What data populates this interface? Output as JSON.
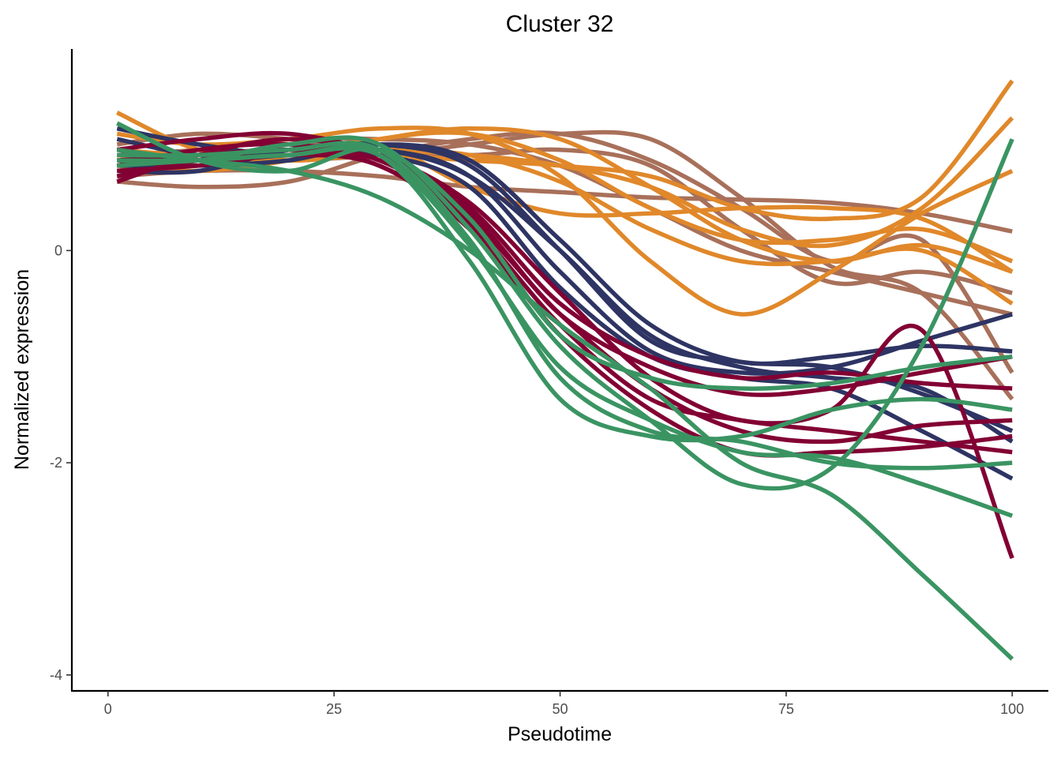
{
  "chart_data": {
    "type": "line",
    "title": "Cluster 32",
    "xlabel": "Pseudotime",
    "ylabel": "Normalized expression",
    "xlim": [
      -4,
      104
    ],
    "ylim": [
      -4.15,
      1.9
    ],
    "xticks": [
      0,
      25,
      50,
      75,
      100
    ],
    "xtick_labels": [
      "0",
      "25",
      "50",
      "75",
      "100"
    ],
    "yticks": [
      0,
      -2,
      -4
    ],
    "ytick_labels": [
      "0",
      "-2",
      "-4"
    ],
    "grid": false,
    "legend": "none",
    "colors": {
      "orange": "#E0882A",
      "brown": "#A8705A",
      "navy": "#2E3463",
      "crimson": "#820033",
      "green": "#3A9462"
    },
    "x": [
      1,
      10,
      20,
      30,
      40,
      50,
      60,
      70,
      80,
      90,
      100
    ],
    "series": [
      {
        "color": "#A8705A",
        "values": [
          0.65,
          0.6,
          0.65,
          0.9,
          1.05,
          1.1,
          0.85,
          0.4,
          -0.1,
          0.1,
          -1.15
        ]
      },
      {
        "color": "#A8705A",
        "values": [
          0.7,
          0.75,
          0.75,
          0.7,
          0.6,
          0.55,
          0.5,
          0.48,
          0.45,
          0.35,
          0.18
        ]
      },
      {
        "color": "#A8705A",
        "values": [
          0.9,
          0.95,
          1.05,
          1.05,
          1.0,
          0.8,
          0.4,
          0.0,
          -0.2,
          -0.4,
          -0.6
        ]
      },
      {
        "color": "#A8705A",
        "values": [
          0.8,
          0.85,
          0.85,
          0.9,
          1.0,
          1.1,
          1.05,
          0.5,
          -0.15,
          -0.4,
          -1.4
        ]
      },
      {
        "color": "#A8705A",
        "values": [
          1.0,
          1.1,
          1.05,
          0.95,
          0.9,
          0.95,
          0.8,
          0.2,
          -0.3,
          -0.2,
          -0.4
        ]
      },
      {
        "color": "#E0882A",
        "values": [
          1.3,
          0.95,
          0.85,
          0.9,
          0.85,
          0.8,
          0.7,
          0.4,
          0.3,
          0.5,
          1.6
        ]
      },
      {
        "color": "#E0882A",
        "values": [
          0.75,
          0.85,
          0.95,
          0.95,
          0.9,
          0.8,
          0.6,
          0.2,
          0.05,
          0.4,
          1.25
        ]
      },
      {
        "color": "#E0882A",
        "values": [
          1.1,
          1.0,
          1.05,
          1.15,
          1.1,
          0.7,
          -0.1,
          -0.6,
          -0.2,
          0.35,
          0.75
        ]
      },
      {
        "color": "#E0882A",
        "values": [
          0.9,
          0.8,
          0.9,
          1.05,
          1.15,
          1.05,
          0.6,
          0.1,
          -0.1,
          0.05,
          -0.2
        ]
      },
      {
        "color": "#E0882A",
        "values": [
          0.7,
          0.85,
          0.95,
          0.95,
          0.9,
          0.65,
          0.2,
          -0.1,
          -0.1,
          0.0,
          -0.5
        ]
      },
      {
        "color": "#E0882A",
        "values": [
          0.95,
          0.9,
          0.95,
          1.0,
          0.6,
          0.35,
          0.35,
          0.4,
          0.4,
          0.3,
          -0.2
        ]
      },
      {
        "color": "#E0882A",
        "values": [
          0.8,
          0.75,
          0.85,
          1.05,
          1.1,
          0.85,
          0.4,
          0.1,
          0.1,
          0.2,
          -0.1
        ]
      },
      {
        "color": "#2E3463",
        "values": [
          1.15,
          1.0,
          0.9,
          0.95,
          0.7,
          0.0,
          -0.8,
          -1.1,
          -1.2,
          -1.3,
          -1.8
        ]
      },
      {
        "color": "#2E3463",
        "values": [
          0.8,
          0.8,
          0.85,
          1.0,
          0.85,
          0.1,
          -0.7,
          -1.05,
          -1.0,
          -0.9,
          -0.95
        ]
      },
      {
        "color": "#2E3463",
        "values": [
          0.95,
          0.85,
          0.9,
          0.95,
          0.7,
          -0.2,
          -0.95,
          -1.15,
          -1.1,
          -0.85,
          -0.6
        ]
      },
      {
        "color": "#2E3463",
        "values": [
          1.05,
          0.9,
          0.9,
          0.9,
          0.6,
          -0.35,
          -1.0,
          -1.2,
          -1.3,
          -1.7,
          -2.15
        ]
      },
      {
        "color": "#2E3463",
        "values": [
          0.75,
          0.75,
          0.95,
          1.0,
          0.8,
          0.0,
          -0.85,
          -1.05,
          -1.1,
          -1.35,
          -1.7
        ]
      },
      {
        "color": "#820033",
        "values": [
          0.65,
          0.9,
          1.05,
          0.9,
          0.45,
          -0.4,
          -1.2,
          -1.6,
          -1.5,
          -0.75,
          -2.9
        ]
      },
      {
        "color": "#820033",
        "values": [
          0.85,
          0.9,
          0.95,
          0.85,
          0.3,
          -0.6,
          -1.3,
          -1.7,
          -1.8,
          -1.65,
          -1.6
        ]
      },
      {
        "color": "#820033",
        "values": [
          0.75,
          0.8,
          0.9,
          0.8,
          0.2,
          -0.8,
          -1.5,
          -1.9,
          -1.9,
          -1.85,
          -1.75
        ]
      },
      {
        "color": "#820033",
        "values": [
          0.95,
          1.05,
          1.1,
          0.9,
          0.4,
          -0.5,
          -1.0,
          -1.2,
          -1.15,
          -1.25,
          -1.3
        ]
      },
      {
        "color": "#820033",
        "values": [
          0.8,
          0.95,
          1.0,
          0.85,
          0.35,
          -0.6,
          -1.1,
          -1.35,
          -1.3,
          -1.15,
          -1.0
        ]
      },
      {
        "color": "#820033",
        "values": [
          0.7,
          0.85,
          0.95,
          0.8,
          0.25,
          -0.7,
          -1.4,
          -1.6,
          -1.7,
          -1.8,
          -1.9
        ]
      },
      {
        "color": "#3A9462",
        "values": [
          1.2,
          0.85,
          0.75,
          0.95,
          0.3,
          -0.8,
          -1.2,
          -1.3,
          -1.25,
          -1.1,
          -1.0
        ]
      },
      {
        "color": "#3A9462",
        "values": [
          0.95,
          0.85,
          0.75,
          0.5,
          0.0,
          -0.7,
          -1.3,
          -2.0,
          -2.3,
          -3.05,
          -3.85
        ]
      },
      {
        "color": "#3A9462",
        "values": [
          0.85,
          0.85,
          1.0,
          1.0,
          0.2,
          -0.9,
          -1.6,
          -2.2,
          -2.05,
          -0.9,
          1.05
        ]
      },
      {
        "color": "#3A9462",
        "values": [
          0.9,
          0.9,
          0.95,
          0.95,
          0.1,
          -1.2,
          -1.7,
          -1.8,
          -2.0,
          -2.05,
          -2.0
        ]
      },
      {
        "color": "#3A9462",
        "values": [
          0.85,
          0.85,
          0.9,
          0.9,
          0.05,
          -1.1,
          -1.6,
          -1.9,
          -1.95,
          -2.2,
          -2.5
        ]
      },
      {
        "color": "#3A9462",
        "values": [
          0.8,
          0.85,
          0.9,
          0.9,
          -0.1,
          -1.4,
          -1.75,
          -1.75,
          -1.5,
          -1.4,
          -1.5
        ]
      }
    ]
  }
}
